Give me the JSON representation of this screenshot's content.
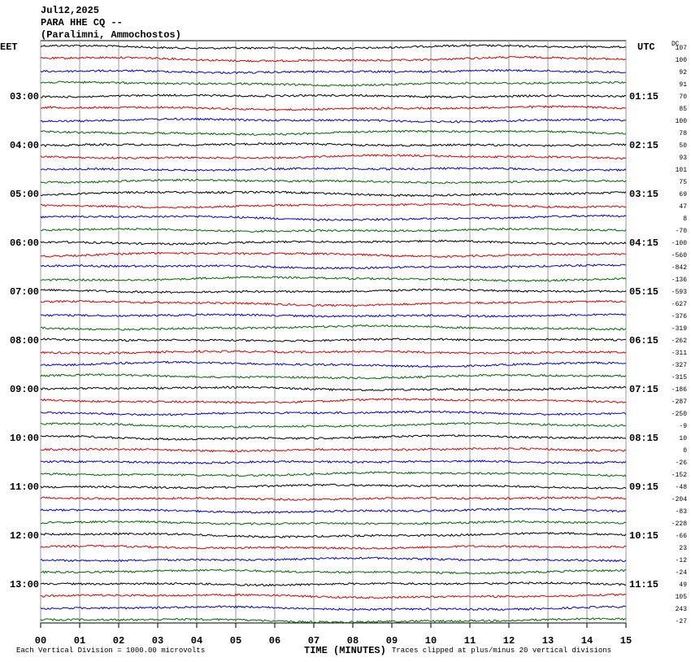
{
  "header": {
    "date": "Jul12,2025",
    "station": "PARA HHE CQ --",
    "location": "(Paralimni, Ammochostos)"
  },
  "left_zone": "EET",
  "right_zone": "UTC",
  "dc_label": "DC",
  "left_times": [
    "03:00",
    "04:00",
    "05:00",
    "06:00",
    "07:00",
    "08:00",
    "09:00",
    "10:00",
    "11:00",
    "12:00",
    "13:00"
  ],
  "right_times": [
    "01:15",
    "02:15",
    "03:15",
    "04:15",
    "05:15",
    "06:15",
    "07:15",
    "08:15",
    "09:15",
    "10:15",
    "11:15"
  ],
  "dc_offsets": [
    107,
    100,
    92,
    91,
    70,
    85,
    100,
    78,
    50,
    93,
    101,
    75,
    69,
    47,
    8,
    -70,
    -100,
    -560,
    -842,
    -136,
    -593,
    -627,
    -376,
    -319,
    -262,
    -311,
    -327,
    -315,
    -186,
    -287,
    -250,
    -9,
    10,
    0,
    -26,
    -152,
    -48,
    -204,
    -83,
    -228,
    -66,
    23,
    -12,
    -24,
    49,
    105,
    243,
    -27
  ],
  "x_ticks": [
    "00",
    "01",
    "02",
    "03",
    "04",
    "05",
    "06",
    "07",
    "08",
    "09",
    "10",
    "11",
    "12",
    "13",
    "14",
    "15"
  ],
  "footer": {
    "scale": "Each Vertical Division = 1000.00 microvolts",
    "x_label": "TIME (MINUTES)",
    "clip": "Traces clipped at plus/minus 20 vertical divisions"
  }
}
